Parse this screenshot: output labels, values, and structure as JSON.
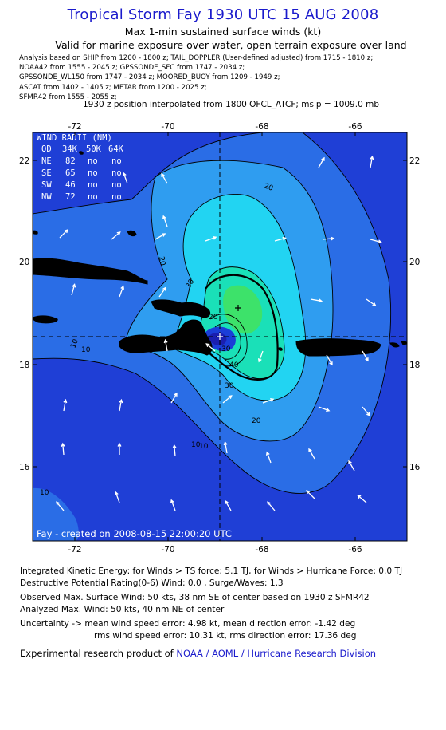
{
  "title": "Tropical Storm Fay 1930 UTC 15 AUG 2008",
  "subtitle1": "Max 1-min sustained surface winds (kt)",
  "subtitle2": "Valid for marine exposure over water, open terrain exposure over land",
  "analysis_lines": [
    "Analysis based on   SHIP from 1200 - 1800 z;  TAIL_DOPPLER (User-defined adjusted) from 1715 - 1810 z;",
    "NOAA42 from 1555 - 2045 z;  GPSSONDE_SFC from 1747 - 2034 z;",
    "GPSSONDE_WL150 from 1747 - 2034 z;  MOORED_BUOY from 1209 - 1949 z;",
    "ASCAT from 1402 - 1405 z;  METAR from 1200 - 2025 z;",
    "SFMR42 from 1555 - 2055 z;"
  ],
  "position_note": "1930 z position interpolated from 1800 OFCL_ATCF; mslp = 1009.0 mb",
  "map": {
    "lon_ticks": [
      "-72",
      "-70",
      "-68",
      "-66"
    ],
    "lat_ticks": [
      "22",
      "20",
      "18",
      "16"
    ],
    "contour_labels": [
      "20",
      "10",
      "20",
      "30",
      "30",
      "40",
      "30",
      "20",
      "10",
      "10",
      "10",
      "10",
      "20"
    ],
    "colors": {
      "outer": "#1f3fd6",
      "c10": "#2a6de6",
      "c20": "#2f9df0",
      "c30": "#22d4f2",
      "c40": "#1ae0b8",
      "c45": "#3de26a",
      "land": "#000000"
    },
    "wind_radii": {
      "title": "WIND RADII (NM)",
      "header": [
        "QD",
        "34K",
        "50K",
        "64K"
      ],
      "rows": [
        [
          "NE",
          "82",
          "no",
          "no"
        ],
        [
          "SE",
          "65",
          "no",
          "no"
        ],
        [
          "SW",
          "46",
          "no",
          "no"
        ],
        [
          "NW",
          "72",
          "no",
          "no"
        ]
      ]
    },
    "credit": "Fay - created on 2008-08-15 22:00:20 UTC"
  },
  "footer": {
    "ike": "Integrated Kinetic Energy:  for Winds > TS force: 5.1 TJ,  for Winds > Hurricane Force: 0.0 TJ",
    "dpr": "Destructive Potential Rating(0-6)   Wind: 0.0 , Surge/Waves: 1.3",
    "obs": "Observed Max. Surface Wind: 50 kts, 38 nm SE of center based on 1930 z SFMR42",
    "analyzed": "Analyzed Max. Wind: 50 kts, 40 nm NE of center",
    "unc1": "Uncertainty -> mean wind speed error: 4.98 kt,   mean direction error:  -1.42 deg",
    "unc2": "rms wind speed error: 10.31 kt,   rms direction error: 17.36 deg",
    "product_prefix": "Experimental research product of",
    "product_org": "NOAA / AOML / Hurricane Research Division"
  }
}
